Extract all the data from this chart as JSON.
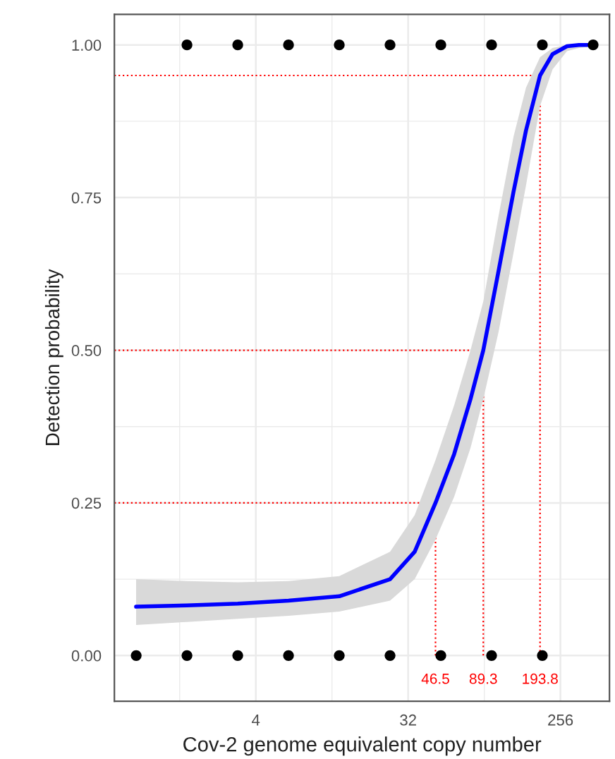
{
  "chart_data": {
    "type": "scatter",
    "xlabel": "Cov-2 genome equivalent copy number",
    "ylabel": "Detection probability",
    "log": "x",
    "xlim": [
      0.58,
      500
    ],
    "xticks": [
      4,
      32,
      256
    ],
    "ylim": [
      -0.075,
      1.05
    ],
    "yticks": [
      {
        "value": 0,
        "label": "0.00"
      },
      {
        "value": 0.25,
        "label": "0.25"
      },
      {
        "value": 0.5,
        "label": "0.50"
      },
      {
        "value": 0.75,
        "label": "0.75"
      },
      {
        "value": 1,
        "label": "1.00"
      }
    ],
    "grid": true,
    "series": [
      {
        "color": "#000000",
        "marker": "circle",
        "x": [
          1.5625,
          3.125,
          6.25,
          12.5,
          25,
          50,
          100,
          200,
          400,
          0.78125,
          1.5625,
          3.125,
          6.25,
          12.5,
          25,
          50,
          100,
          200
        ],
        "values": [
          1,
          1,
          1,
          1,
          1,
          1,
          1,
          1,
          1,
          0,
          0,
          0,
          0,
          0,
          0,
          0,
          0,
          0
        ]
      },
      {
        "type": "line",
        "color": "#0000ff",
        "line_style": "solid",
        "x": [
          0.78,
          1.56,
          3.125,
          6.25,
          12.5,
          25,
          35,
          46.5,
          60,
          75,
          89.3,
          110,
          135,
          160,
          193.8,
          230,
          280,
          330,
          400
        ],
        "values": [
          0.08,
          0.082,
          0.085,
          0.09,
          0.097,
          0.125,
          0.17,
          0.25,
          0.33,
          0.42,
          0.5,
          0.63,
          0.76,
          0.86,
          0.95,
          0.985,
          0.998,
          1.0,
          1.0
        ],
        "lower": [
          0.05,
          0.055,
          0.06,
          0.065,
          0.072,
          0.09,
          0.125,
          0.19,
          0.26,
          0.34,
          0.42,
          0.53,
          0.66,
          0.77,
          0.9,
          0.96,
          0.99,
          0.995,
          0.998
        ],
        "upper": [
          0.125,
          0.122,
          0.12,
          0.122,
          0.13,
          0.17,
          0.23,
          0.32,
          0.41,
          0.5,
          0.58,
          0.72,
          0.85,
          0.93,
          0.98,
          0.995,
          1.0,
          1.0,
          1.0
        ]
      }
    ],
    "ref_lines": [
      {
        "axis": "y",
        "value": 0.25,
        "color": "#ff0000",
        "line_style": "dotted"
      },
      {
        "axis": "y",
        "value": 0.5,
        "color": "#ff0000",
        "line_style": "dotted"
      },
      {
        "axis": "y",
        "value": 0.95,
        "color": "#ff0000",
        "line_style": "dotted"
      },
      {
        "axis": "x",
        "value": 46.5,
        "label": "46.5",
        "color": "#ff0000",
        "line_style": "dotted"
      },
      {
        "axis": "x",
        "value": 89.3,
        "label": "89.3",
        "color": "#ff0000",
        "line_style": "dotted"
      },
      {
        "axis": "x",
        "value": 193.8,
        "label": "193.8",
        "color": "#ff0000",
        "line_style": "dotted"
      }
    ]
  }
}
